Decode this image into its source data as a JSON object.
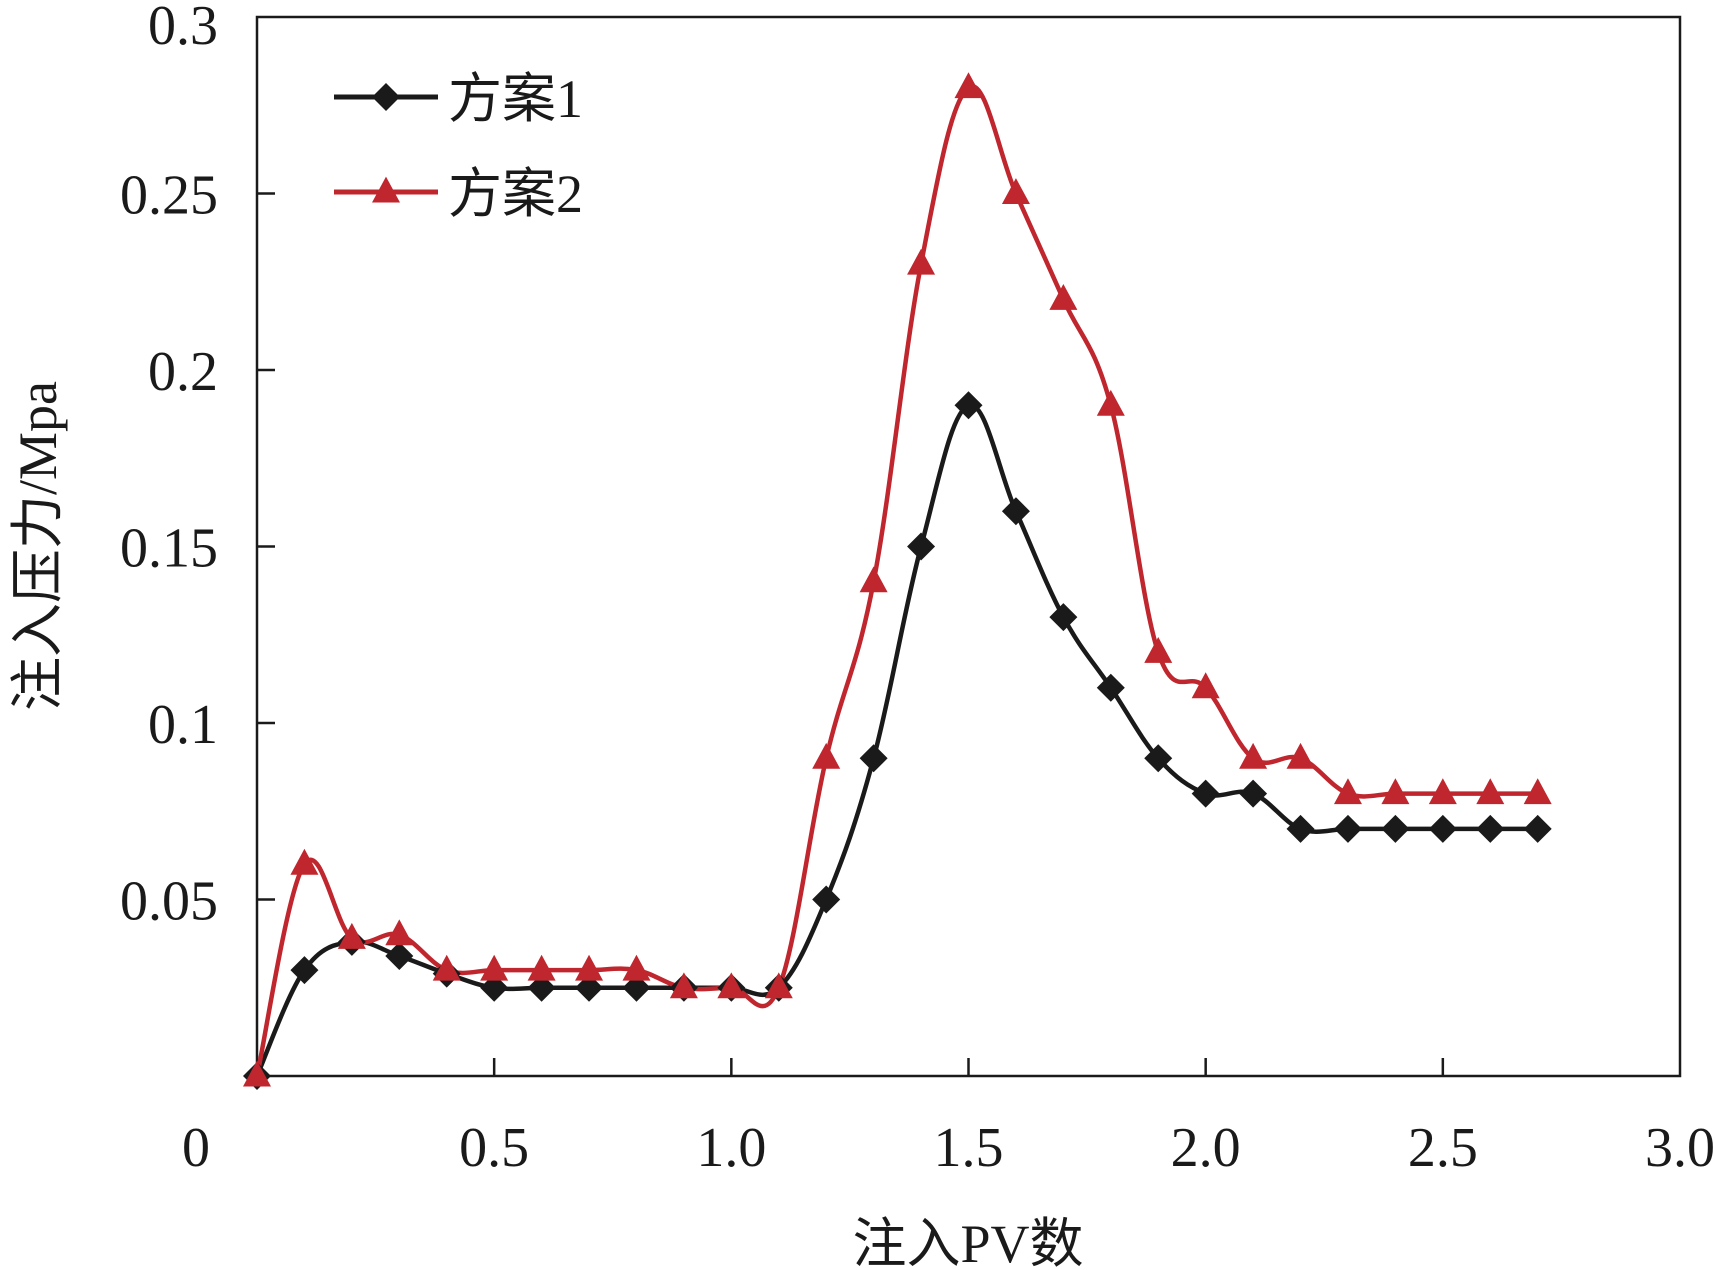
{
  "chart_data": {
    "type": "line",
    "title": "",
    "xlabel": "注入PV数",
    "ylabel": "注入压力/Mpa",
    "xlim": [
      0,
      3.0
    ],
    "ylim": [
      0,
      0.3
    ],
    "xticks": [
      "0",
      "0.5",
      "1.0",
      "1.5",
      "2.0",
      "2.5",
      "3.0"
    ],
    "xtick_values": [
      0,
      0.5,
      1.0,
      1.5,
      2.0,
      2.5,
      3.0
    ],
    "yticks": [
      "0.05",
      "0.1",
      "0.15",
      "0.2",
      "0.25",
      "0.3"
    ],
    "ytick_values": [
      0.05,
      0.1,
      0.15,
      0.2,
      0.25,
      0.3
    ],
    "grid": false,
    "legend_position": "top-left",
    "x": [
      0,
      0.1,
      0.2,
      0.3,
      0.4,
      0.5,
      0.6,
      0.7,
      0.8,
      0.9,
      1.0,
      1.1,
      1.2,
      1.3,
      1.4,
      1.5,
      1.6,
      1.7,
      1.8,
      1.9,
      2.0,
      2.1,
      2.2,
      2.3,
      2.4,
      2.5,
      2.6,
      2.7
    ],
    "series": [
      {
        "name": "方案1",
        "color": "#1a1a1a",
        "marker": "diamond",
        "values": [
          0.0,
          0.03,
          0.038,
          0.034,
          0.029,
          0.025,
          0.025,
          0.025,
          0.025,
          0.025,
          0.025,
          0.025,
          0.05,
          0.09,
          0.15,
          0.19,
          0.16,
          0.13,
          0.11,
          0.09,
          0.08,
          0.08,
          0.07,
          0.07,
          0.07,
          0.07,
          0.07,
          0.07
        ]
      },
      {
        "name": "方案2",
        "color": "#c0262d",
        "marker": "triangle",
        "values": [
          0.0,
          0.06,
          0.039,
          0.04,
          0.03,
          0.03,
          0.03,
          0.03,
          0.03,
          0.025,
          0.025,
          0.025,
          0.09,
          0.14,
          0.23,
          0.28,
          0.25,
          0.22,
          0.19,
          0.12,
          0.11,
          0.09,
          0.09,
          0.08,
          0.08,
          0.08,
          0.08,
          0.08
        ]
      }
    ]
  }
}
